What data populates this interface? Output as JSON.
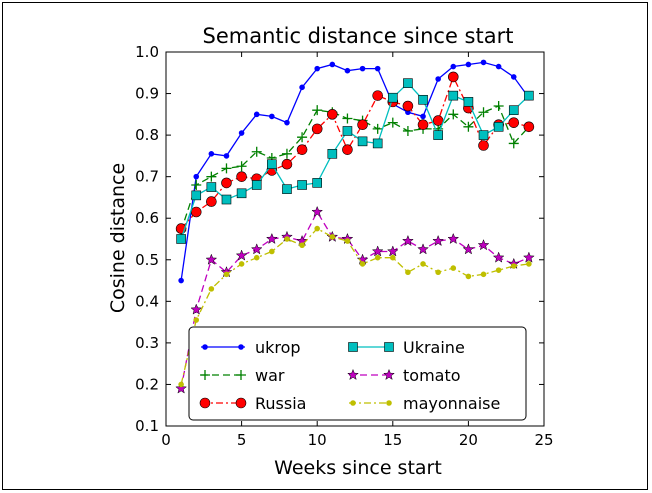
{
  "chart_data": {
    "type": "line",
    "title": "Semantic distance since start",
    "xlabel": "Weeks since start",
    "ylabel": "Cosine distance",
    "xlim": [
      0,
      25
    ],
    "ylim": [
      0.1,
      1.0
    ],
    "xticks": [
      "0",
      "5",
      "10",
      "15",
      "20",
      "25"
    ],
    "xtick_values": [
      0,
      5,
      10,
      15,
      20,
      25
    ],
    "yticks": [
      "0.1",
      "0.2",
      "0.3",
      "0.4",
      "0.5",
      "0.6",
      "0.7",
      "0.8",
      "0.9",
      "1.0"
    ],
    "ytick_values": [
      0.1,
      0.2,
      0.3,
      0.4,
      0.5,
      0.6,
      0.7,
      0.8,
      0.9,
      1.0
    ],
    "grid": false,
    "legend_position": "lower-center",
    "x": [
      1,
      2,
      3,
      4,
      5,
      6,
      7,
      8,
      9,
      10,
      11,
      12,
      13,
      14,
      15,
      16,
      17,
      18,
      19,
      20,
      21,
      22,
      23,
      24
    ],
    "series": [
      {
        "name": "ukrop",
        "color": "#0000ff",
        "marker": "dot",
        "line": "solid",
        "values": [
          0.45,
          0.7,
          0.755,
          0.75,
          0.805,
          0.85,
          0.845,
          0.83,
          0.915,
          0.96,
          0.97,
          0.955,
          0.96,
          0.96,
          0.875,
          0.855,
          0.845,
          0.935,
          0.965,
          0.97,
          0.975,
          0.965,
          0.94,
          0.89
        ]
      },
      {
        "name": "war",
        "color": "#008000",
        "marker": "plus",
        "line": "dashed",
        "values": [
          0.57,
          0.68,
          0.7,
          0.72,
          0.725,
          0.76,
          0.745,
          0.755,
          0.795,
          0.86,
          0.855,
          0.84,
          0.835,
          0.815,
          0.83,
          0.81,
          0.815,
          0.815,
          0.85,
          0.82,
          0.855,
          0.87,
          0.78,
          0.82
        ]
      },
      {
        "name": "Russia",
        "color": "#ff0000",
        "marker": "circle",
        "line": "dashdot",
        "values": [
          0.575,
          0.615,
          0.64,
          0.685,
          0.7,
          0.695,
          0.715,
          0.73,
          0.765,
          0.815,
          0.85,
          0.765,
          0.825,
          0.895,
          0.88,
          0.87,
          0.825,
          0.835,
          0.94,
          0.865,
          0.775,
          0.825,
          0.83,
          0.82
        ]
      },
      {
        "name": "Ukraine",
        "color": "#00bfbf",
        "marker": "square",
        "line": "solid",
        "values": [
          0.55,
          0.655,
          0.675,
          0.645,
          0.66,
          0.68,
          0.73,
          0.67,
          0.68,
          0.685,
          0.755,
          0.81,
          0.785,
          0.78,
          0.89,
          0.925,
          0.885,
          0.8,
          0.895,
          0.88,
          0.8,
          0.82,
          0.86,
          0.895
        ]
      },
      {
        "name": "tomato",
        "color": "#bf00bf",
        "marker": "star",
        "line": "dashed",
        "values": [
          0.19,
          0.38,
          0.5,
          0.47,
          0.51,
          0.525,
          0.55,
          0.555,
          0.545,
          0.615,
          0.555,
          0.55,
          0.5,
          0.52,
          0.52,
          0.545,
          0.525,
          0.545,
          0.55,
          0.525,
          0.535,
          0.505,
          0.49,
          0.505
        ]
      },
      {
        "name": "mayonnaise",
        "color": "#bfbf00",
        "marker": "dot",
        "line": "dashdot",
        "values": [
          0.2,
          0.355,
          0.43,
          0.465,
          0.49,
          0.505,
          0.52,
          0.55,
          0.535,
          0.575,
          0.555,
          0.545,
          0.49,
          0.505,
          0.505,
          0.47,
          0.49,
          0.47,
          0.48,
          0.46,
          0.465,
          0.475,
          0.485,
          0.49
        ]
      }
    ]
  }
}
